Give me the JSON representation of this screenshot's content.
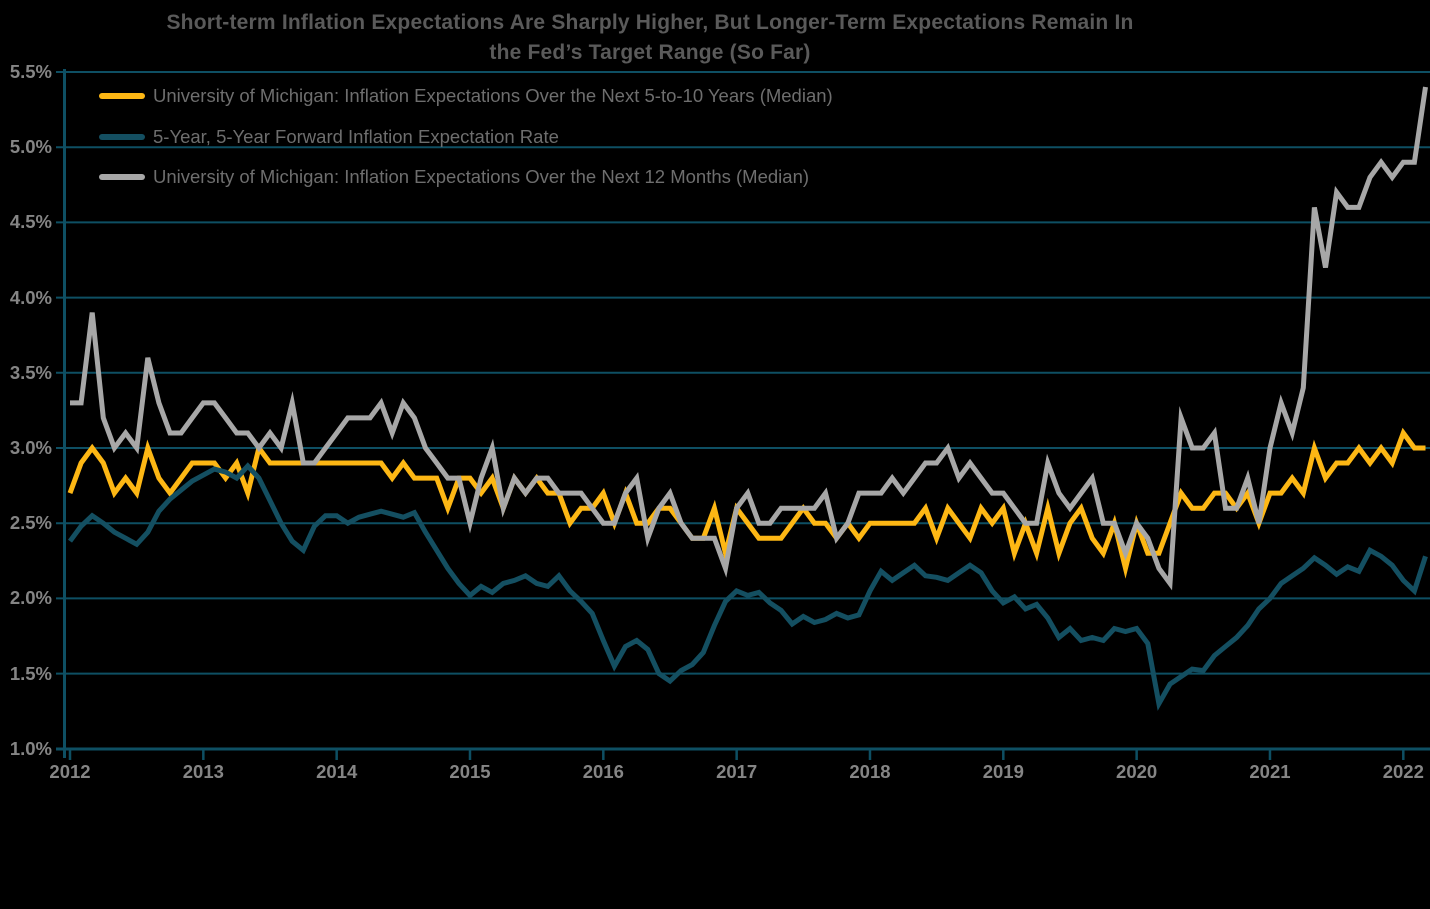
{
  "title": {
    "line1": "Short-term Inflation Expectations Are Sharply Higher, But Longer-Term Expectations Remain In",
    "line2": "the Fed’s Target Range (So Far)"
  },
  "legend": [
    {
      "label": "University of Michigan: Inflation Expectations Over the Next 5-to-10 Years (Median)",
      "color": "#FDB714"
    },
    {
      "label": "5-Year, 5-Year Forward Inflation Expectation Rate",
      "color": "#144F61"
    },
    {
      "label": "University of Michigan: Inflation Expectations Over the Next 12 Months (Median)",
      "color": "#A7A7A7"
    }
  ],
  "colors": {
    "background": "#000000",
    "gridline": "#0E4F63",
    "axis": "#0E4F63",
    "title_text": "#5A5A5A",
    "legend_text": "#6E6E6E",
    "tick_text": "#858585"
  },
  "chart_data": {
    "type": "line",
    "title": "Short-term Inflation Expectations Are Sharply Higher, But Longer-Term Expectations Remain In the Fed’s Target Range (So Far)",
    "x_unit": "month",
    "x_start": "2012-01",
    "x_end": "2022-03",
    "x_tick_labels": [
      "2012",
      "2013",
      "2014",
      "2015",
      "2016",
      "2017",
      "2018",
      "2019",
      "2020",
      "2021",
      "2022"
    ],
    "y_tick_labels": [
      "5.5%",
      "5.0%",
      "4.5%",
      "4.0%",
      "3.5%",
      "3.0%",
      "2.5%",
      "2.0%",
      "1.5%",
      "1.0%"
    ],
    "ylim": [
      1.0,
      5.5
    ],
    "y_step": 0.5,
    "grid": true,
    "legend_position": "top-left",
    "series": [
      {
        "name": "University of Michigan: Inflation Expectations Over the Next 5-to-10 Years (Median)",
        "color": "#FDB714",
        "values": [
          2.7,
          2.9,
          3.0,
          2.9,
          2.7,
          2.8,
          2.7,
          3.0,
          2.8,
          2.7,
          2.8,
          2.9,
          2.9,
          2.9,
          2.8,
          2.9,
          2.7,
          3.0,
          2.9,
          2.9,
          2.9,
          2.9,
          2.9,
          2.9,
          2.9,
          2.9,
          2.9,
          2.9,
          2.9,
          2.8,
          2.9,
          2.8,
          2.8,
          2.8,
          2.6,
          2.8,
          2.8,
          2.7,
          2.8,
          2.6,
          2.8,
          2.7,
          2.8,
          2.7,
          2.7,
          2.5,
          2.6,
          2.6,
          2.7,
          2.5,
          2.7,
          2.5,
          2.5,
          2.6,
          2.6,
          2.5,
          2.4,
          2.4,
          2.6,
          2.3,
          2.6,
          2.5,
          2.4,
          2.4,
          2.4,
          2.5,
          2.6,
          2.5,
          2.5,
          2.4,
          2.5,
          2.4,
          2.5,
          2.5,
          2.5,
          2.5,
          2.5,
          2.6,
          2.4,
          2.6,
          2.5,
          2.4,
          2.6,
          2.5,
          2.6,
          2.3,
          2.5,
          2.3,
          2.6,
          2.3,
          2.5,
          2.6,
          2.4,
          2.3,
          2.5,
          2.2,
          2.5,
          2.3,
          2.3,
          2.5,
          2.7,
          2.6,
          2.6,
          2.7,
          2.7,
          2.6,
          2.7,
          2.5,
          2.7,
          2.7,
          2.8,
          2.7,
          3.0,
          2.8,
          2.9,
          2.9,
          3.0,
          2.9,
          3.0,
          2.9,
          3.1,
          3.0,
          3.0
        ]
      },
      {
        "name": "5-Year, 5-Year Forward Inflation Expectation Rate",
        "color": "#144F61",
        "values": [
          2.38,
          2.48,
          2.55,
          2.5,
          2.44,
          2.4,
          2.36,
          2.44,
          2.58,
          2.66,
          2.72,
          2.78,
          2.82,
          2.86,
          2.84,
          2.8,
          2.88,
          2.8,
          2.65,
          2.5,
          2.38,
          2.32,
          2.48,
          2.55,
          2.55,
          2.5,
          2.54,
          2.56,
          2.58,
          2.56,
          2.54,
          2.57,
          2.44,
          2.32,
          2.2,
          2.1,
          2.02,
          2.08,
          2.04,
          2.1,
          2.12,
          2.15,
          2.1,
          2.08,
          2.15,
          2.05,
          1.98,
          1.9,
          1.72,
          1.55,
          1.68,
          1.72,
          1.66,
          1.5,
          1.45,
          1.52,
          1.56,
          1.64,
          1.82,
          1.98,
          2.05,
          2.02,
          2.04,
          1.97,
          1.92,
          1.83,
          1.88,
          1.84,
          1.86,
          1.9,
          1.87,
          1.89,
          2.05,
          2.18,
          2.12,
          2.17,
          2.22,
          2.15,
          2.14,
          2.12,
          2.17,
          2.22,
          2.17,
          2.05,
          1.97,
          2.01,
          1.93,
          1.96,
          1.87,
          1.74,
          1.8,
          1.72,
          1.74,
          1.72,
          1.8,
          1.78,
          1.8,
          1.7,
          1.3,
          1.43,
          1.48,
          1.53,
          1.52,
          1.62,
          1.68,
          1.74,
          1.82,
          1.93,
          2.0,
          2.1,
          2.15,
          2.2,
          2.27,
          2.22,
          2.16,
          2.21,
          2.18,
          2.32,
          2.28,
          2.22,
          2.12,
          2.05,
          2.28
        ]
      },
      {
        "name": "University of Michigan: Inflation Expectations Over the Next 12 Months (Median)",
        "color": "#A7A7A7",
        "values": [
          3.3,
          3.3,
          3.9,
          3.2,
          3.0,
          3.1,
          3.0,
          3.6,
          3.3,
          3.1,
          3.1,
          3.2,
          3.3,
          3.3,
          3.2,
          3.1,
          3.1,
          3.0,
          3.1,
          3.0,
          3.3,
          2.9,
          2.9,
          3.0,
          3.1,
          3.2,
          3.2,
          3.2,
          3.3,
          3.1,
          3.3,
          3.2,
          3.0,
          2.9,
          2.8,
          2.8,
          2.5,
          2.8,
          3.0,
          2.6,
          2.8,
          2.7,
          2.8,
          2.8,
          2.7,
          2.7,
          2.7,
          2.6,
          2.5,
          2.5,
          2.7,
          2.8,
          2.4,
          2.6,
          2.7,
          2.5,
          2.4,
          2.4,
          2.4,
          2.2,
          2.6,
          2.7,
          2.5,
          2.5,
          2.6,
          2.6,
          2.6,
          2.6,
          2.7,
          2.4,
          2.5,
          2.7,
          2.7,
          2.7,
          2.8,
          2.7,
          2.8,
          2.9,
          2.9,
          3.0,
          2.8,
          2.9,
          2.8,
          2.7,
          2.7,
          2.6,
          2.5,
          2.5,
          2.9,
          2.7,
          2.6,
          2.7,
          2.8,
          2.5,
          2.5,
          2.3,
          2.5,
          2.4,
          2.2,
          2.1,
          3.2,
          3.0,
          3.0,
          3.1,
          2.6,
          2.6,
          2.8,
          2.5,
          3.0,
          3.3,
          3.1,
          3.4,
          4.6,
          4.2,
          4.7,
          4.6,
          4.6,
          4.8,
          4.9,
          4.8,
          4.9,
          4.9,
          5.4
        ]
      }
    ]
  }
}
